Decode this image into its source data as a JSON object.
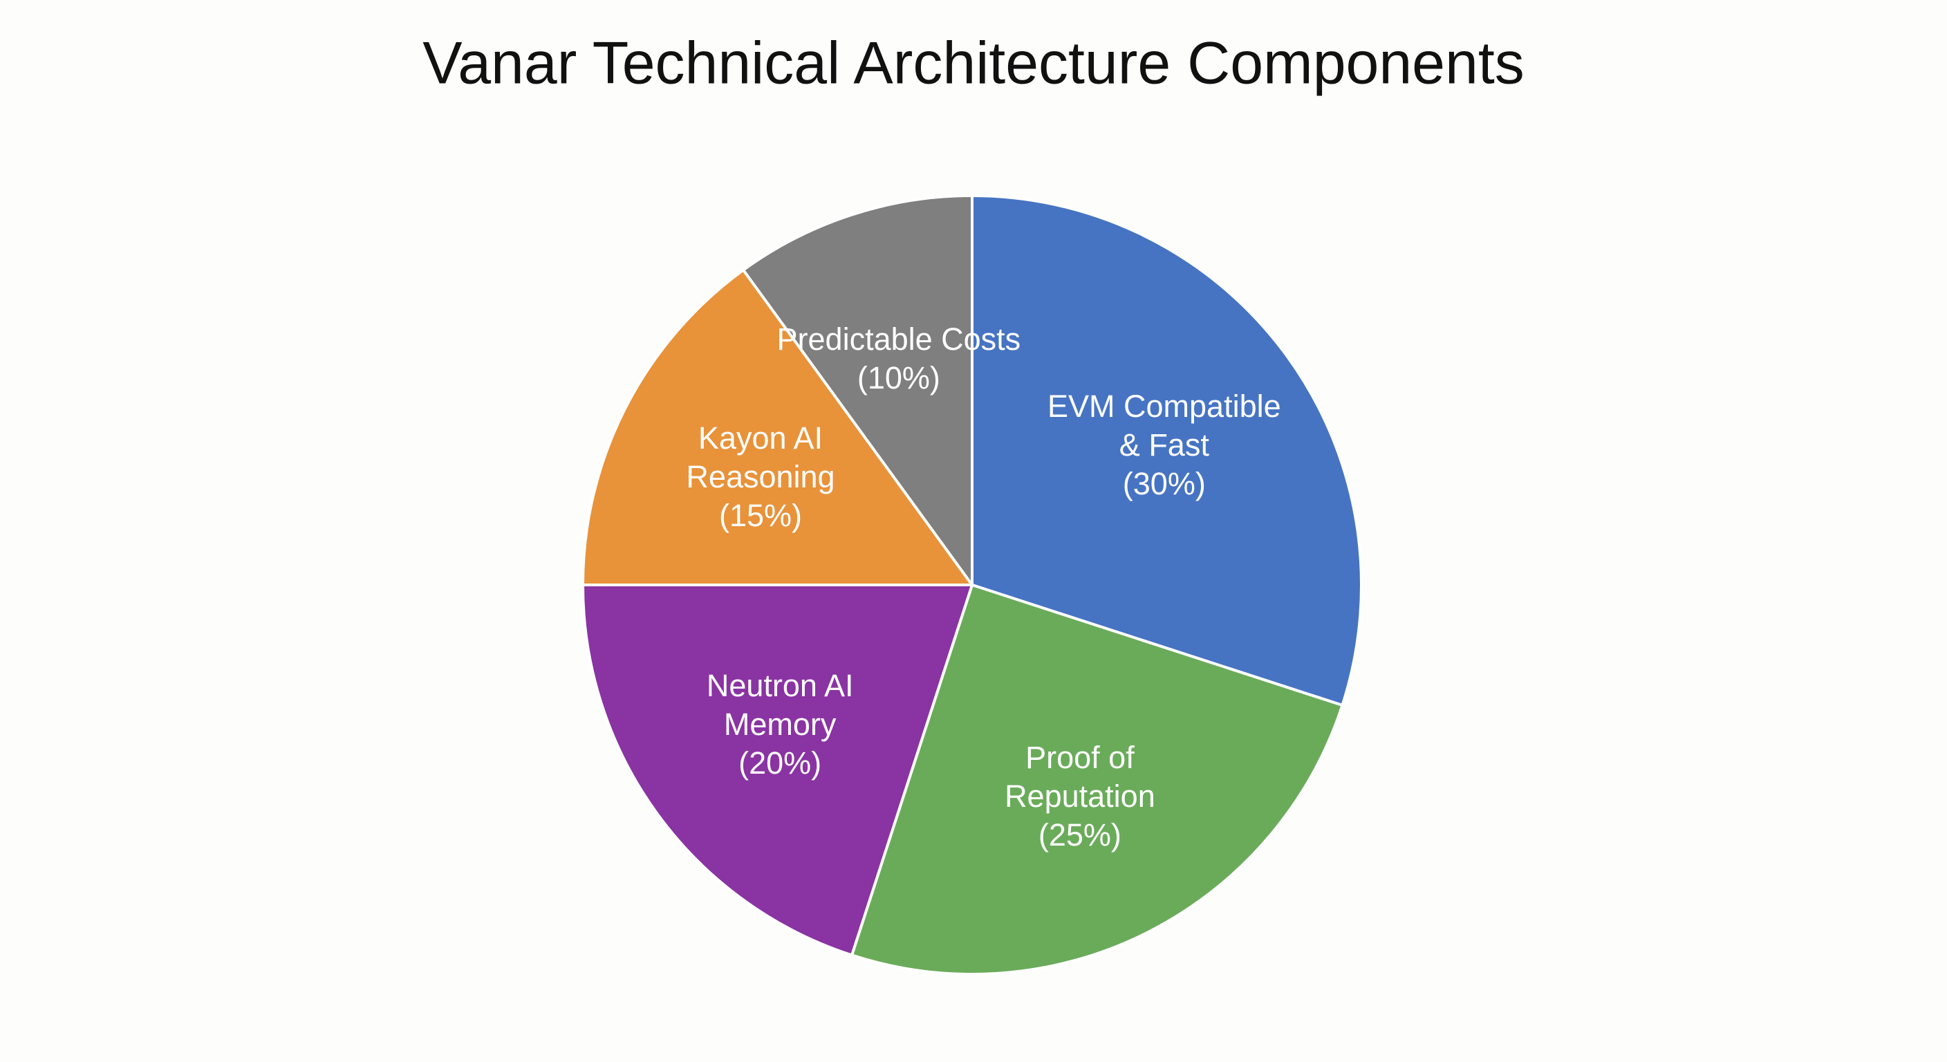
{
  "chart_data": {
    "type": "pie",
    "title": "Vanar Technical Architecture Components",
    "categories": [
      "EVM Compatible & Fast",
      "Proof of Reputation",
      "Neutron AI Memory",
      "Kayon AI Reasoning",
      "Predictable Costs"
    ],
    "values": [
      30,
      25,
      20,
      15,
      10
    ],
    "value_labels": [
      "(30%)",
      "(25%)",
      "(20%)",
      "(15%)",
      "(10%)"
    ],
    "colors": [
      "#4674c3",
      "#6aab5a",
      "#8a33a3",
      "#e8923a",
      "#7f7f7f"
    ]
  }
}
